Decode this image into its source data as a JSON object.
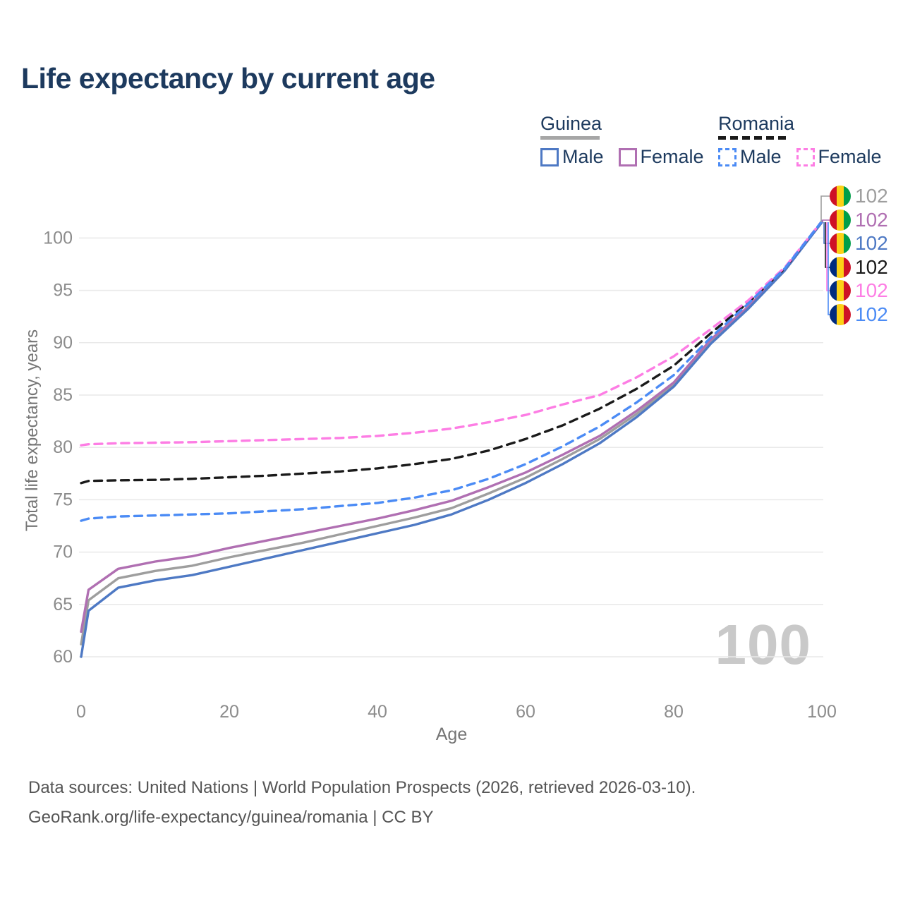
{
  "legend": {
    "groups": [
      {
        "country": "Guinea",
        "line_style": "solid",
        "underline_color": "#a6a6a6",
        "items": [
          {
            "label": "Male",
            "color": "#4e79c4"
          },
          {
            "label": "Female",
            "color": "#b06fb2"
          }
        ]
      },
      {
        "country": "Romania",
        "line_style": "dashed",
        "underline_color": "#1a1a1a",
        "items": [
          {
            "label": "Male",
            "color": "#4b8bf5"
          },
          {
            "label": "Female",
            "color": "#fd7de4"
          }
        ]
      }
    ]
  },
  "age_counter": "100",
  "footer": {
    "line1": "Data sources: United Nations | World Population Prospects (2026, retrieved 2026-03-10).",
    "line2": "GeoRank.org/life-expectancy/guinea/romania | CC BY"
  },
  "chart_data": {
    "type": "line",
    "title": "Life expectancy by current age",
    "xlabel": "Age",
    "ylabel": "Total life expectancy, years",
    "xlim": [
      0,
      100
    ],
    "ylim": [
      58.5,
      102.5
    ],
    "xticks": [
      0,
      20,
      40,
      60,
      80,
      100
    ],
    "yticks": [
      60,
      65,
      70,
      75,
      80,
      85,
      90,
      95,
      100
    ],
    "grid": "horizontal",
    "legend_position": "top-right",
    "colors": {
      "grid": "#e9e9e9",
      "tick_text": "#8c8c8c",
      "title_text": "#1d3a5e",
      "watermark": "#c9c9c9"
    },
    "flags": {
      "guinea": [
        "#ce1126",
        "#fcd116",
        "#009e49"
      ],
      "romania": [
        "#002b7f",
        "#fcd116",
        "#ce1126"
      ]
    },
    "x": [
      0,
      1,
      5,
      10,
      15,
      20,
      25,
      30,
      35,
      40,
      45,
      50,
      55,
      60,
      65,
      70,
      75,
      80,
      85,
      90,
      95,
      100
    ],
    "series": [
      {
        "name": "Guinea Both sexes",
        "country": "Guinea",
        "sex": "both",
        "style": "solid",
        "color": "#9e9e9e",
        "flag": "guinea",
        "end_label": "102",
        "values": [
          61.2,
          65.4,
          67.5,
          68.2,
          68.7,
          69.5,
          70.2,
          70.9,
          71.7,
          72.5,
          73.3,
          74.2,
          75.6,
          77.1,
          78.9,
          80.8,
          83.2,
          86.0,
          90.1,
          93.3,
          97.0,
          101.5
        ]
      },
      {
        "name": "Guinea Female",
        "country": "Guinea",
        "sex": "female",
        "style": "solid",
        "color": "#b06fb2",
        "flag": "guinea",
        "end_label": "102",
        "values": [
          62.4,
          66.4,
          68.4,
          69.1,
          69.6,
          70.4,
          71.1,
          71.8,
          72.5,
          73.2,
          74.0,
          74.9,
          76.2,
          77.6,
          79.3,
          81.1,
          83.5,
          86.2,
          90.3,
          93.4,
          97.0,
          101.5
        ]
      },
      {
        "name": "Guinea Male",
        "country": "Guinea",
        "sex": "male",
        "style": "solid",
        "color": "#4e79c4",
        "flag": "guinea",
        "end_label": "102",
        "values": [
          60.0,
          64.4,
          66.6,
          67.3,
          67.8,
          68.6,
          69.4,
          70.2,
          71.0,
          71.8,
          72.6,
          73.6,
          75.0,
          76.6,
          78.4,
          80.4,
          82.9,
          85.8,
          89.9,
          93.2,
          96.9,
          101.5
        ]
      },
      {
        "name": "Romania Both sexes",
        "country": "Romania",
        "sex": "both",
        "style": "dashed",
        "color": "#1a1a1a",
        "flag": "romania",
        "end_label": "102",
        "values": [
          76.6,
          76.8,
          76.85,
          76.9,
          77.0,
          77.15,
          77.3,
          77.5,
          77.7,
          78.0,
          78.4,
          78.9,
          79.7,
          80.8,
          82.1,
          83.7,
          85.6,
          87.8,
          90.9,
          93.8,
          97.1,
          101.6
        ]
      },
      {
        "name": "Romania Female",
        "country": "Romania",
        "sex": "female",
        "style": "dashed",
        "color": "#fd7de4",
        "flag": "romania",
        "end_label": "102",
        "values": [
          80.2,
          80.3,
          80.4,
          80.45,
          80.5,
          80.6,
          80.7,
          80.8,
          80.9,
          81.1,
          81.4,
          81.8,
          82.4,
          83.1,
          84.1,
          85.0,
          86.7,
          88.7,
          91.3,
          94.0,
          97.2,
          101.6
        ]
      },
      {
        "name": "Romania Male",
        "country": "Romania",
        "sex": "male",
        "style": "dashed",
        "color": "#4b8bf5",
        "flag": "romania",
        "end_label": "102",
        "values": [
          73.0,
          73.2,
          73.4,
          73.5,
          73.6,
          73.7,
          73.9,
          74.1,
          74.4,
          74.7,
          75.2,
          75.9,
          77.0,
          78.4,
          80.1,
          82.0,
          84.3,
          86.9,
          90.5,
          93.7,
          97.1,
          101.6
        ]
      }
    ]
  }
}
